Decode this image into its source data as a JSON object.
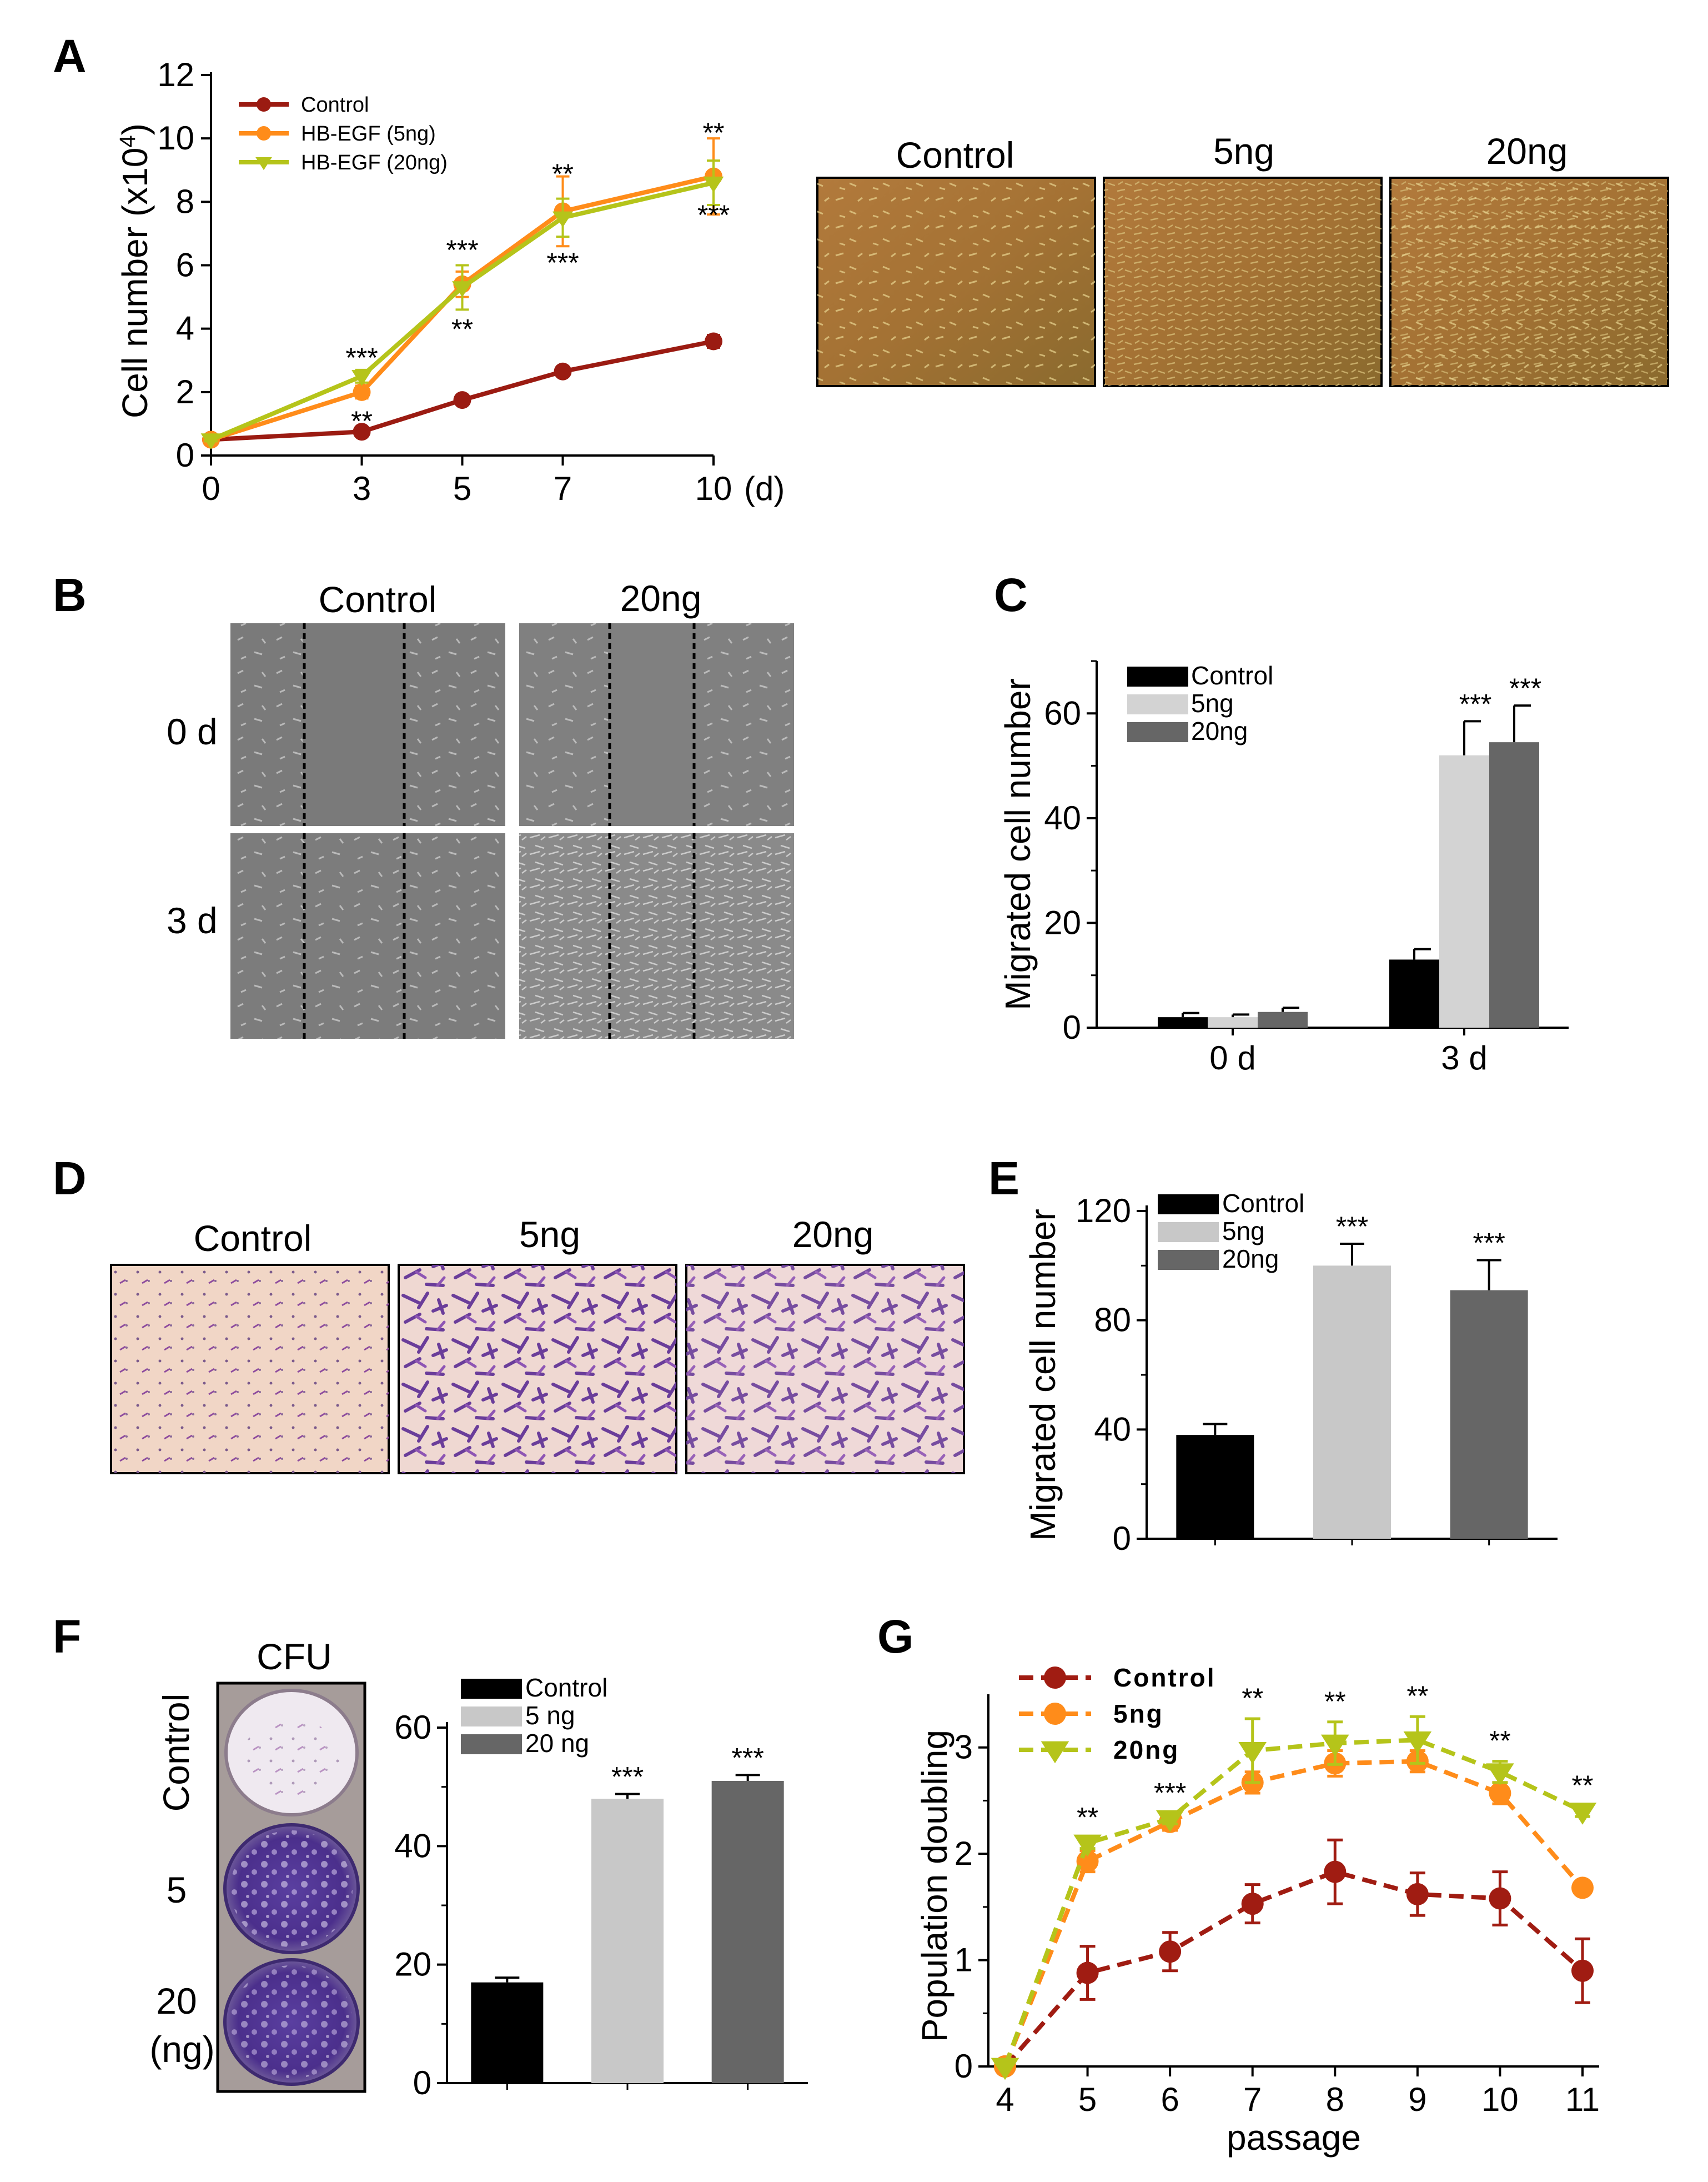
{
  "panels": {
    "A": {
      "letter": "A"
    },
    "B": {
      "letter": "B",
      "columns": [
        "Control",
        "20ng"
      ],
      "rows": [
        "0 d",
        "3 d"
      ]
    },
    "C": {
      "letter": "C"
    },
    "D": {
      "letter": "D",
      "columns": [
        "Control",
        "5ng",
        "20ng"
      ]
    },
    "E": {
      "letter": "E"
    },
    "F": {
      "letter": "F",
      "plate_title": "CFU",
      "plate_labels": [
        "Control",
        "5",
        "20",
        "(ng)"
      ]
    },
    "G": {
      "letter": "G"
    },
    "A_images": {
      "columns": [
        "Control",
        "5ng",
        "20ng"
      ]
    }
  },
  "chart_data": [
    {
      "id": "A",
      "type": "line",
      "ylabel": "Cell number (x10",
      "ylabel_sup": "4",
      "ylabel_end": ")",
      "x": [
        0,
        3,
        5,
        7,
        10
      ],
      "x_ticks": [
        "0",
        "3",
        "5",
        "7",
        "10"
      ],
      "x_unit": "(d)",
      "ylim": [
        0,
        12
      ],
      "y_ticks": [
        0,
        2,
        4,
        6,
        8,
        10,
        12
      ],
      "series": [
        {
          "name": "Control",
          "color": "#9b1b12",
          "marker": "circle",
          "values": [
            0.5,
            0.75,
            1.75,
            2.65,
            3.6
          ],
          "errors": [
            0.05,
            0.1,
            0.1,
            0.1,
            0.2
          ]
        },
        {
          "name": "HB-EGF (5ng)",
          "color": "#ff8c1a",
          "marker": "circle",
          "values": [
            0.5,
            2.0,
            5.4,
            7.7,
            8.8
          ],
          "errors": [
            0.05,
            0.2,
            0.4,
            1.1,
            1.2
          ]
        },
        {
          "name": "HB-EGF (20ng)",
          "color": "#b5c41a",
          "marker": "triangle",
          "values": [
            0.5,
            2.5,
            5.3,
            7.5,
            8.6
          ],
          "errors": [
            0.05,
            0.2,
            0.7,
            0.6,
            0.7
          ]
        }
      ],
      "annotations": [
        {
          "x": 3,
          "y": 3.1,
          "text": "***"
        },
        {
          "x": 3,
          "y": 1.1,
          "text": "**"
        },
        {
          "x": 5,
          "y": 6.5,
          "text": "***"
        },
        {
          "x": 5,
          "y": 4.0,
          "text": "**"
        },
        {
          "x": 7,
          "y": 8.9,
          "text": "**"
        },
        {
          "x": 7,
          "y": 6.1,
          "text": "***"
        },
        {
          "x": 10,
          "y": 10.2,
          "text": "**"
        },
        {
          "x": 10,
          "y": 7.6,
          "text": "***"
        }
      ]
    },
    {
      "id": "C",
      "type": "bar",
      "ylabel": "Migrated cell number",
      "categories": [
        "0 d",
        "3 d"
      ],
      "ylim": [
        0,
        70
      ],
      "y_ticks": [
        0,
        20,
        40,
        60
      ],
      "series": [
        {
          "name": "Control",
          "color": "#000000",
          "values": [
            2,
            13
          ],
          "errors": [
            0.8,
            2
          ]
        },
        {
          "name": "5ng",
          "color": "#d3d3d3",
          "values": [
            2,
            52
          ],
          "errors": [
            0.5,
            6.5
          ]
        },
        {
          "name": "20ng",
          "color": "#666666",
          "values": [
            3,
            54.5
          ],
          "errors": [
            0.8,
            7
          ]
        }
      ],
      "annotations": [
        {
          "category": 1,
          "series": 1,
          "text": "***"
        },
        {
          "category": 1,
          "series": 2,
          "text": "***"
        }
      ]
    },
    {
      "id": "E",
      "type": "bar",
      "ylabel": "Migrated cell number",
      "categories": [
        "Control",
        "5ng",
        "20ng"
      ],
      "ylim": [
        0,
        120
      ],
      "y_ticks": [
        0,
        40,
        80,
        120
      ],
      "legend": [
        "Control",
        "5ng",
        "20ng"
      ],
      "colors": [
        "#000000",
        "#c8c8c8",
        "#666666"
      ],
      "values": [
        38,
        100,
        91
      ],
      "errors": [
        4,
        8,
        11
      ],
      "annotations": [
        "",
        "***",
        "***"
      ]
    },
    {
      "id": "F",
      "type": "bar",
      "ylabel": "",
      "categories": [
        "Control",
        "5 ng",
        "20 ng"
      ],
      "ylim": [
        0,
        60
      ],
      "y_ticks": [
        0,
        20,
        40,
        60
      ],
      "legend": [
        "Control",
        "5 ng",
        "20 ng"
      ],
      "colors": [
        "#000000",
        "#c8c8c8",
        "#666666"
      ],
      "values": [
        17,
        48,
        51
      ],
      "errors": [
        0.8,
        0.8,
        1
      ],
      "annotations": [
        "",
        "***",
        "***"
      ]
    },
    {
      "id": "G",
      "type": "line",
      "ylabel": "Population doubling",
      "xlabel": "passage",
      "x": [
        4,
        5,
        6,
        7,
        8,
        9,
        10,
        11
      ],
      "xlim": [
        4,
        11
      ],
      "ylim": [
        0,
        3.5
      ],
      "y_ticks": [
        0,
        1,
        2,
        3
      ],
      "series": [
        {
          "name": "Control",
          "color": "#a01c12",
          "values": [
            0,
            0.88,
            1.08,
            1.53,
            1.83,
            1.62,
            1.58,
            0.9
          ],
          "errors": [
            0,
            0.25,
            0.18,
            0.18,
            0.3,
            0.2,
            0.25,
            0.3
          ]
        },
        {
          "name": "5ng",
          "color": "#ff8c1a",
          "values": [
            0,
            1.93,
            2.3,
            2.67,
            2.85,
            2.87,
            2.57,
            1.68
          ],
          "errors": [
            0,
            0.1,
            0.08,
            0.1,
            0.12,
            0.1,
            0.1,
            0.05
          ]
        },
        {
          "name": "20ng",
          "color": "#b5c41a",
          "values": [
            0,
            2.1,
            2.33,
            2.97,
            3.04,
            3.07,
            2.77,
            2.4
          ],
          "errors": [
            0,
            0.05,
            0.05,
            0.3,
            0.2,
            0.22,
            0.1,
            0.05
          ]
        }
      ],
      "annotations": [
        {
          "x": 5,
          "text": "**"
        },
        {
          "x": 6,
          "text": "***"
        },
        {
          "x": 7,
          "text": "**"
        },
        {
          "x": 8,
          "text": "**"
        },
        {
          "x": 9,
          "text": "**"
        },
        {
          "x": 10,
          "text": "**"
        },
        {
          "x": 11,
          "text": "**"
        }
      ]
    }
  ]
}
